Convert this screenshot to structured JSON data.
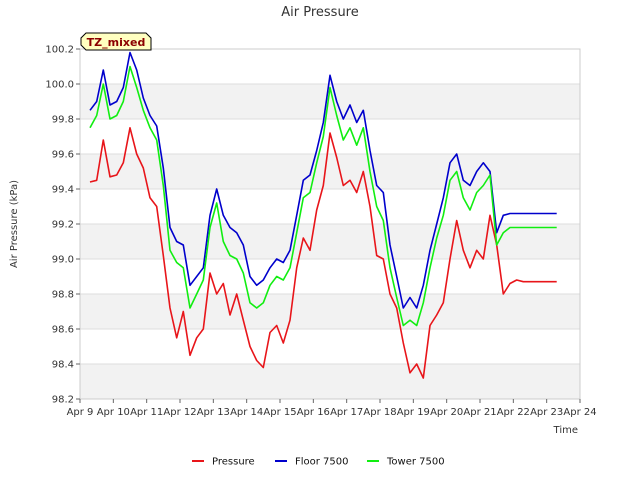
{
  "chart_data": {
    "type": "line",
    "title": "Air Pressure",
    "xlabel": "Time",
    "ylabel": "Air Pressure (kPa)",
    "annotation": "TZ_mixed",
    "x_ticks": [
      "Apr 9",
      "Apr 10",
      "Apr 11",
      "Apr 12",
      "Apr 13",
      "Apr 14",
      "Apr 15",
      "Apr 16",
      "Apr 17",
      "Apr 18",
      "Apr 19",
      "Apr 20",
      "Apr 21",
      "Apr 22",
      "Apr 23",
      "Apr 24"
    ],
    "y_ticks": [
      "98.2",
      "98.4",
      "98.6",
      "98.8",
      "99.0",
      "99.2",
      "99.4",
      "99.6",
      "99.8",
      "100.0",
      "100.2"
    ],
    "xlim": [
      "Apr 9",
      "Apr 24"
    ],
    "ylim": [
      98.2,
      100.2
    ],
    "grid": true,
    "legend_position": "bottom",
    "colors": {
      "Pressure": "#e8151a",
      "Floor 7500": "#0000cc",
      "Tower 7500": "#11ee11",
      "band": "#f2f2f2",
      "grid": "#dddddd",
      "tz_fill": "#ffffc0"
    },
    "x_days": [
      0.3,
      0.5,
      0.7,
      0.9,
      1.1,
      1.3,
      1.5,
      1.7,
      1.9,
      2.1,
      2.3,
      2.5,
      2.7,
      2.9,
      3.1,
      3.3,
      3.5,
      3.7,
      3.9,
      4.1,
      4.3,
      4.5,
      4.7,
      4.9,
      5.1,
      5.3,
      5.5,
      5.7,
      5.9,
      6.1,
      6.3,
      6.5,
      6.7,
      6.9,
      7.1,
      7.3,
      7.5,
      7.7,
      7.9,
      8.1,
      8.3,
      8.5,
      8.7,
      8.9,
      9.1,
      9.3,
      9.5,
      9.7,
      9.9,
      10.1,
      10.3,
      10.5,
      10.7,
      10.9,
      11.1,
      11.3,
      11.5,
      11.7,
      11.9,
      12.1,
      12.3,
      12.5,
      12.7,
      12.9,
      13.1,
      13.3,
      13.5,
      13.7,
      13.9,
      14.1,
      14.3
    ],
    "series": [
      {
        "name": "Pressure",
        "values": [
          99.44,
          99.45,
          99.68,
          99.47,
          99.48,
          99.55,
          99.75,
          99.6,
          99.52,
          99.35,
          99.3,
          99.02,
          98.72,
          98.55,
          98.7,
          98.45,
          98.55,
          98.6,
          98.92,
          98.8,
          98.86,
          98.68,
          98.8,
          98.65,
          98.5,
          98.42,
          98.38,
          98.58,
          98.62,
          98.52,
          98.65,
          98.95,
          99.12,
          99.05,
          99.28,
          99.42,
          99.72,
          99.58,
          99.42,
          99.45,
          99.38,
          99.5,
          99.3,
          99.02,
          99.0,
          98.8,
          98.72,
          98.52,
          98.35,
          98.4,
          98.32,
          98.62,
          98.68,
          98.75,
          99.0,
          99.22,
          99.05,
          98.95,
          99.05,
          99.0,
          99.25,
          99.08,
          98.8,
          98.86,
          98.88,
          98.87,
          98.87,
          98.87,
          98.87,
          98.87,
          98.87
        ]
      },
      {
        "name": "Floor 7500",
        "values": [
          99.85,
          99.9,
          100.08,
          99.88,
          99.9,
          99.98,
          100.18,
          100.08,
          99.92,
          99.82,
          99.76,
          99.52,
          99.18,
          99.1,
          99.08,
          98.85,
          98.9,
          98.95,
          99.25,
          99.4,
          99.25,
          99.18,
          99.15,
          99.08,
          98.9,
          98.85,
          98.88,
          98.95,
          99.0,
          98.98,
          99.05,
          99.25,
          99.45,
          99.48,
          99.62,
          99.78,
          100.05,
          99.9,
          99.8,
          99.88,
          99.78,
          99.85,
          99.62,
          99.42,
          99.38,
          99.08,
          98.9,
          98.72,
          98.78,
          98.72,
          98.85,
          99.05,
          99.2,
          99.35,
          99.55,
          99.6,
          99.45,
          99.42,
          99.5,
          99.55,
          99.5,
          99.15,
          99.25,
          99.26,
          99.26,
          99.26,
          99.26,
          99.26,
          99.26,
          99.26,
          99.26
        ]
      },
      {
        "name": "Tower 7500",
        "values": [
          99.75,
          99.82,
          100.0,
          99.8,
          99.82,
          99.9,
          100.1,
          99.98,
          99.85,
          99.75,
          99.68,
          99.42,
          99.05,
          98.98,
          98.95,
          98.72,
          98.8,
          98.88,
          99.18,
          99.32,
          99.1,
          99.02,
          99.0,
          98.92,
          98.75,
          98.72,
          98.75,
          98.85,
          98.9,
          98.88,
          98.95,
          99.15,
          99.35,
          99.38,
          99.55,
          99.7,
          99.98,
          99.82,
          99.68,
          99.75,
          99.65,
          99.75,
          99.5,
          99.3,
          99.22,
          98.95,
          98.78,
          98.62,
          98.65,
          98.62,
          98.75,
          98.95,
          99.12,
          99.25,
          99.45,
          99.5,
          99.35,
          99.28,
          99.38,
          99.42,
          99.48,
          99.08,
          99.15,
          99.18,
          99.18,
          99.18,
          99.18,
          99.18,
          99.18,
          99.18,
          99.18
        ]
      }
    ]
  }
}
